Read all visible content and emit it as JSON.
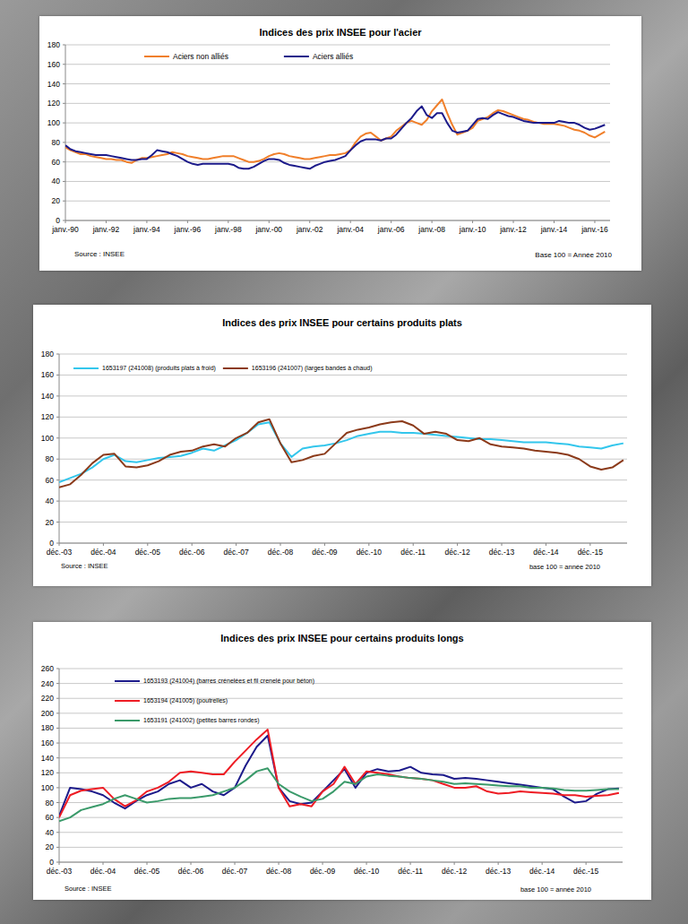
{
  "chart_data": [
    {
      "type": "line",
      "title": "Indices des prix INSEE pour l'acier",
      "source": "Source : INSEE",
      "note": "Base 100 = Année 2010",
      "x": [
        "1990-01",
        "1990-04",
        "1990-07",
        "1990-10",
        "1991-01",
        "1991-04",
        "1991-07",
        "1991-10",
        "1992-01",
        "1992-04",
        "1992-07",
        "1992-10",
        "1993-01",
        "1993-04",
        "1993-07",
        "1993-10",
        "1994-01",
        "1994-04",
        "1994-07",
        "1994-10",
        "1995-01",
        "1995-04",
        "1995-07",
        "1995-10",
        "1996-01",
        "1996-04",
        "1996-07",
        "1996-10",
        "1997-01",
        "1997-04",
        "1997-07",
        "1997-10",
        "1998-01",
        "1998-04",
        "1998-07",
        "1998-10",
        "1999-01",
        "1999-04",
        "1999-07",
        "1999-10",
        "2000-01",
        "2000-04",
        "2000-07",
        "2000-10",
        "2001-01",
        "2001-04",
        "2001-07",
        "2001-10",
        "2002-01",
        "2002-04",
        "2002-07",
        "2002-10",
        "2003-01",
        "2003-04",
        "2003-07",
        "2003-10",
        "2004-01",
        "2004-04",
        "2004-07",
        "2004-10",
        "2005-01",
        "2005-04",
        "2005-07",
        "2005-10",
        "2006-01",
        "2006-04",
        "2006-07",
        "2006-10",
        "2007-01",
        "2007-04",
        "2007-07",
        "2007-10",
        "2008-01",
        "2008-04",
        "2008-07",
        "2008-10",
        "2009-01",
        "2009-04",
        "2009-07",
        "2009-10",
        "2010-01",
        "2010-04",
        "2010-07",
        "2010-10",
        "2011-01",
        "2011-04",
        "2011-07",
        "2011-10",
        "2012-01",
        "2012-04",
        "2012-07",
        "2012-10",
        "2013-01",
        "2013-04",
        "2013-07",
        "2013-10",
        "2014-01",
        "2014-04",
        "2014-07",
        "2014-10",
        "2015-01",
        "2015-04",
        "2015-07",
        "2015-10",
        "2016-01",
        "2016-04",
        "2016-07"
      ],
      "series": [
        {
          "name": "Aciers non alliés",
          "color": "#f07f2a",
          "values": [
            75,
            72,
            70,
            68,
            68,
            66,
            65,
            64,
            63,
            63,
            62,
            62,
            60,
            59,
            62,
            64,
            64,
            65,
            66,
            67,
            68,
            70,
            69,
            68,
            66,
            65,
            64,
            63,
            63,
            64,
            65,
            66,
            66,
            66,
            64,
            62,
            60,
            60,
            61,
            63,
            66,
            68,
            69,
            68,
            66,
            65,
            64,
            63,
            63,
            64,
            65,
            66,
            67,
            67,
            68,
            69,
            72,
            80,
            86,
            89,
            90,
            86,
            82,
            84,
            86,
            92,
            96,
            100,
            102,
            100,
            98,
            103,
            112,
            118,
            124,
            110,
            98,
            88,
            90,
            92,
            95,
            102,
            104,
            106,
            110,
            113,
            112,
            110,
            108,
            106,
            104,
            103,
            101,
            100,
            99,
            99,
            99,
            98,
            97,
            95,
            93,
            92,
            90,
            87,
            85,
            88,
            91
          ]
        },
        {
          "name": "Aciers alliés",
          "color": "#1c1a8a",
          "values": [
            77,
            73,
            71,
            70,
            69,
            68,
            67,
            67,
            67,
            66,
            65,
            64,
            63,
            62,
            62,
            63,
            63,
            67,
            72,
            71,
            70,
            68,
            66,
            63,
            60,
            58,
            57,
            58,
            58,
            58,
            58,
            58,
            58,
            57,
            54,
            53,
            53,
            55,
            58,
            61,
            63,
            63,
            62,
            59,
            57,
            56,
            55,
            54,
            53,
            56,
            58,
            60,
            61,
            62,
            64,
            66,
            72,
            77,
            81,
            83,
            83,
            83,
            82,
            84,
            84,
            88,
            94,
            100,
            105,
            112,
            117,
            108,
            105,
            110,
            110,
            100,
            92,
            90,
            91,
            92,
            98,
            104,
            105,
            104,
            108,
            111,
            109,
            107,
            106,
            104,
            102,
            101,
            100,
            100,
            100,
            100,
            100,
            102,
            101,
            100,
            100,
            98,
            95,
            93,
            94,
            96,
            98
          ]
        }
      ],
      "xlim": [
        "1990-01",
        "2016-10"
      ],
      "xticks": [
        {
          "value": "1990-01",
          "label": "janv.-90"
        },
        {
          "value": "1992-01",
          "label": "janv.-92"
        },
        {
          "value": "1994-01",
          "label": "janv.-94"
        },
        {
          "value": "1996-01",
          "label": "janv.-96"
        },
        {
          "value": "1998-01",
          "label": "janv.-98"
        },
        {
          "value": "2000-01",
          "label": "janv.-00"
        },
        {
          "value": "2002-01",
          "label": "janv.-02"
        },
        {
          "value": "2004-01",
          "label": "janv.-04"
        },
        {
          "value": "2006-01",
          "label": "janv.-06"
        },
        {
          "value": "2008-01",
          "label": "janv.-08"
        },
        {
          "value": "2010-01",
          "label": "janv.-10"
        },
        {
          "value": "2012-01",
          "label": "janv.-12"
        },
        {
          "value": "2014-01",
          "label": "janv.-14"
        },
        {
          "value": "2016-01",
          "label": "janv.-16"
        }
      ],
      "ylim": [
        0,
        180
      ],
      "yticks": [
        0,
        20,
        40,
        60,
        80,
        100,
        120,
        140,
        160,
        180
      ],
      "grid": true,
      "legend": "top-left"
    },
    {
      "type": "line",
      "title": "Indices des prix INSEE pour certains produits plats",
      "source": "Source : INSEE",
      "note": "base 100 = année 2010",
      "x": [
        "2003-12",
        "2004-03",
        "2004-06",
        "2004-09",
        "2004-12",
        "2005-03",
        "2005-06",
        "2005-09",
        "2005-12",
        "2006-03",
        "2006-06",
        "2006-09",
        "2006-12",
        "2007-03",
        "2007-06",
        "2007-09",
        "2007-12",
        "2008-03",
        "2008-06",
        "2008-09",
        "2008-12",
        "2009-03",
        "2009-06",
        "2009-09",
        "2009-12",
        "2010-03",
        "2010-06",
        "2010-09",
        "2010-12",
        "2011-03",
        "2011-06",
        "2011-09",
        "2011-12",
        "2012-03",
        "2012-06",
        "2012-09",
        "2012-12",
        "2013-03",
        "2013-06",
        "2013-09",
        "2013-12",
        "2014-03",
        "2014-06",
        "2014-09",
        "2014-12",
        "2015-03",
        "2015-06",
        "2015-09",
        "2015-12",
        "2016-03",
        "2016-06",
        "2016-09"
      ],
      "series": [
        {
          "name": "1653197 (241008) (produits plats à froid)",
          "color": "#33c6ec",
          "values": [
            58,
            62,
            66,
            72,
            80,
            84,
            78,
            77,
            79,
            81,
            82,
            83,
            86,
            90,
            88,
            93,
            98,
            105,
            113,
            115,
            95,
            82,
            90,
            92,
            93,
            95,
            98,
            102,
            104,
            106,
            106,
            105,
            105,
            104,
            103,
            102,
            101,
            100,
            99,
            99,
            98,
            97,
            96,
            96,
            96,
            95,
            94,
            92,
            91,
            90,
            93,
            95
          ]
        },
        {
          "name": "1653196 (241007) (larges bandes à chaud)",
          "color": "#8b3a1a",
          "values": [
            53,
            56,
            65,
            76,
            84,
            85,
            73,
            72,
            74,
            78,
            84,
            87,
            88,
            92,
            94,
            92,
            100,
            105,
            115,
            118,
            95,
            77,
            79,
            83,
            85,
            95,
            105,
            108,
            110,
            113,
            115,
            116,
            112,
            104,
            106,
            104,
            98,
            97,
            100,
            94,
            92,
            91,
            90,
            88,
            87,
            86,
            84,
            80,
            73,
            70,
            72,
            79
          ]
        }
      ],
      "xlim": [
        "2003-12",
        "2016-10"
      ],
      "xticks": [
        {
          "value": "2003-12",
          "label": "déc.-03"
        },
        {
          "value": "2004-12",
          "label": "déc.-04"
        },
        {
          "value": "2005-12",
          "label": "déc.-05"
        },
        {
          "value": "2006-12",
          "label": "déc.-06"
        },
        {
          "value": "2007-12",
          "label": "déc.-07"
        },
        {
          "value": "2008-12",
          "label": "déc.-08"
        },
        {
          "value": "2009-12",
          "label": "déc.-09"
        },
        {
          "value": "2010-12",
          "label": "déc.-10"
        },
        {
          "value": "2011-12",
          "label": "déc.-11"
        },
        {
          "value": "2012-12",
          "label": "déc.-12"
        },
        {
          "value": "2013-12",
          "label": "déc.-13"
        },
        {
          "value": "2014-12",
          "label": "déc.-14"
        },
        {
          "value": "2015-12",
          "label": "déc.-15"
        }
      ],
      "ylim": [
        0,
        180
      ],
      "yticks": [
        0,
        20,
        40,
        60,
        80,
        100,
        120,
        140,
        160,
        180
      ],
      "grid": true,
      "legend": "top-left"
    },
    {
      "type": "line",
      "title": "Indices des prix INSEE pour certains produits longs",
      "source": "Source : INSEE",
      "note": "base 100 = année 2010",
      "x": [
        "2003-12",
        "2004-03",
        "2004-06",
        "2004-09",
        "2004-12",
        "2005-03",
        "2005-06",
        "2005-09",
        "2005-12",
        "2006-03",
        "2006-06",
        "2006-09",
        "2006-12",
        "2007-03",
        "2007-06",
        "2007-09",
        "2007-12",
        "2008-03",
        "2008-06",
        "2008-09",
        "2008-12",
        "2009-03",
        "2009-06",
        "2009-09",
        "2009-12",
        "2010-03",
        "2010-06",
        "2010-09",
        "2010-12",
        "2011-03",
        "2011-06",
        "2011-09",
        "2011-12",
        "2012-03",
        "2012-06",
        "2012-09",
        "2012-12",
        "2013-03",
        "2013-06",
        "2013-09",
        "2013-12",
        "2014-03",
        "2014-06",
        "2014-09",
        "2014-12",
        "2015-03",
        "2015-06",
        "2015-09",
        "2015-12",
        "2016-03",
        "2016-06",
        "2016-09"
      ],
      "series": [
        {
          "name": "1653193 (241004) (barres crénelées et fil crenelé pour béton)",
          "color": "#1c1a8a",
          "values": [
            62,
            100,
            98,
            95,
            90,
            80,
            72,
            82,
            90,
            95,
            105,
            110,
            100,
            105,
            95,
            90,
            100,
            130,
            155,
            170,
            100,
            82,
            78,
            80,
            95,
            110,
            125,
            100,
            120,
            125,
            122,
            123,
            128,
            120,
            118,
            117,
            112,
            113,
            112,
            110,
            108,
            106,
            104,
            102,
            100,
            98,
            88,
            80,
            82,
            92,
            98,
            99
          ]
        },
        {
          "name": "1653194 (241005) (poutrelles)",
          "color": "#ee1c24",
          "values": [
            60,
            90,
            96,
            98,
            100,
            85,
            75,
            83,
            95,
            100,
            108,
            120,
            122,
            120,
            118,
            118,
            135,
            150,
            165,
            178,
            100,
            75,
            78,
            75,
            95,
            105,
            128,
            105,
            122,
            120,
            118,
            115,
            113,
            112,
            110,
            105,
            100,
            100,
            102,
            95,
            92,
            93,
            95,
            94,
            93,
            92,
            90,
            90,
            88,
            89,
            90,
            93
          ]
        },
        {
          "name": "1653191 (241002) (petites barres rondes)",
          "color": "#3a9a6a",
          "values": [
            55,
            60,
            70,
            74,
            78,
            85,
            90,
            85,
            80,
            82,
            85,
            86,
            86,
            88,
            90,
            95,
            100,
            110,
            122,
            126,
            105,
            95,
            88,
            82,
            85,
            95,
            108,
            105,
            115,
            118,
            116,
            115,
            113,
            112,
            110,
            108,
            105,
            106,
            105,
            104,
            103,
            102,
            102,
            100,
            100,
            99,
            97,
            96,
            96,
            97,
            98,
            98
          ]
        }
      ],
      "xlim": [
        "2003-12",
        "2016-10"
      ],
      "xticks": [
        {
          "value": "2003-12",
          "label": "déc.-03"
        },
        {
          "value": "2004-12",
          "label": "déc.-04"
        },
        {
          "value": "2005-12",
          "label": "déc.-05"
        },
        {
          "value": "2006-12",
          "label": "déc.-06"
        },
        {
          "value": "2007-12",
          "label": "déc.-07"
        },
        {
          "value": "2008-12",
          "label": "déc.-08"
        },
        {
          "value": "2009-12",
          "label": "déc.-09"
        },
        {
          "value": "2010-12",
          "label": "déc.-10"
        },
        {
          "value": "2011-12",
          "label": "déc.-11"
        },
        {
          "value": "2012-12",
          "label": "déc.-12"
        },
        {
          "value": "2013-12",
          "label": "déc.-13"
        },
        {
          "value": "2014-12",
          "label": "déc.-14"
        },
        {
          "value": "2015-12",
          "label": "déc.-15"
        }
      ],
      "ylim": [
        0,
        260
      ],
      "yticks": [
        0,
        20,
        40,
        60,
        80,
        100,
        120,
        140,
        160,
        180,
        200,
        220,
        240,
        260
      ],
      "grid": true,
      "legend": "top-left"
    }
  ]
}
